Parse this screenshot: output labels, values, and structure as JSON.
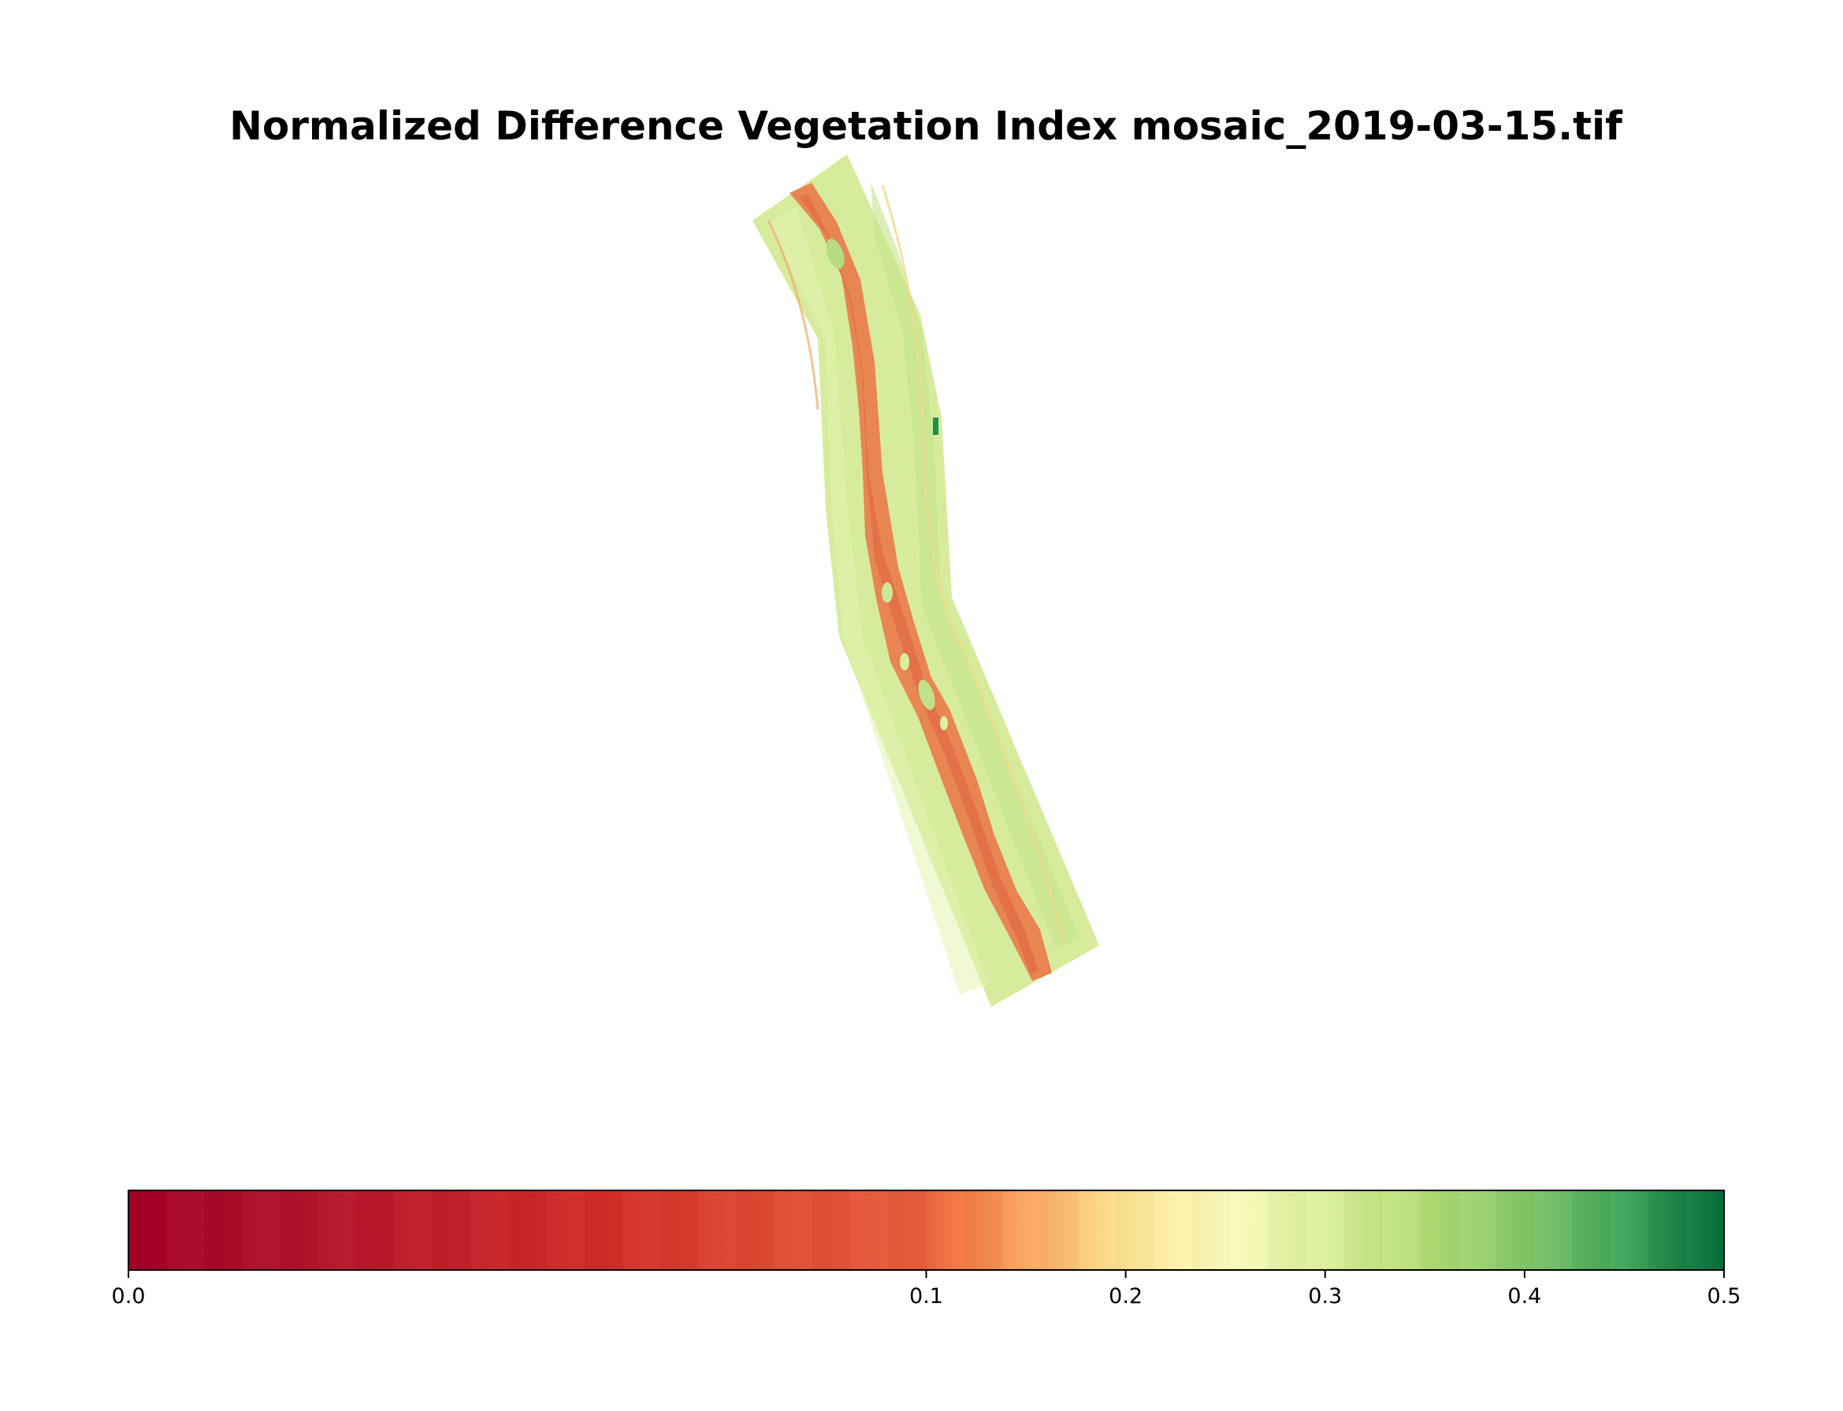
{
  "chart_data": {
    "type": "heatmap",
    "title": "Normalized Difference Vegetation Index mosaic_2019-03-15.tif",
    "colormap": "RdYlGn",
    "colorbar": {
      "orientation": "horizontal",
      "placement": "bottom",
      "range": [
        0.0,
        0.5
      ],
      "ticks": [
        0.0,
        0.1,
        0.2,
        0.3,
        0.4,
        0.5
      ],
      "tick_labels": [
        "0.0",
        "0.1",
        "0.2",
        "0.3",
        "0.4",
        "0.5"
      ],
      "stops": [
        {
          "value": 0.0,
          "color": "#a50026"
        },
        {
          "value": 0.02,
          "color": "#b1112a"
        },
        {
          "value": 0.04,
          "color": "#c41e29"
        },
        {
          "value": 0.06,
          "color": "#d42d27"
        },
        {
          "value": 0.08,
          "color": "#e04a33"
        },
        {
          "value": 0.1,
          "color": "#ea5f3c"
        },
        {
          "value": 0.12,
          "color": "#f47d46"
        },
        {
          "value": 0.15,
          "color": "#fba660"
        },
        {
          "value": 0.2,
          "color": "#fee593"
        },
        {
          "value": 0.25,
          "color": "#fbfcbc"
        },
        {
          "value": 0.3,
          "color": "#dcf09a"
        },
        {
          "value": 0.35,
          "color": "#b5de75"
        },
        {
          "value": 0.4,
          "color": "#84c869"
        },
        {
          "value": 0.45,
          "color": "#3fa65a"
        },
        {
          "value": 0.5,
          "color": "#006837"
        }
      ]
    },
    "mosaic": {
      "field_value_range": [
        0.22,
        0.33
      ],
      "channel_value_range": [
        0.1,
        0.16
      ],
      "typical_field_color": "#d5ec9a",
      "typical_channel_color": "#ef8c52"
    },
    "axes": "off",
    "grid": false
  }
}
